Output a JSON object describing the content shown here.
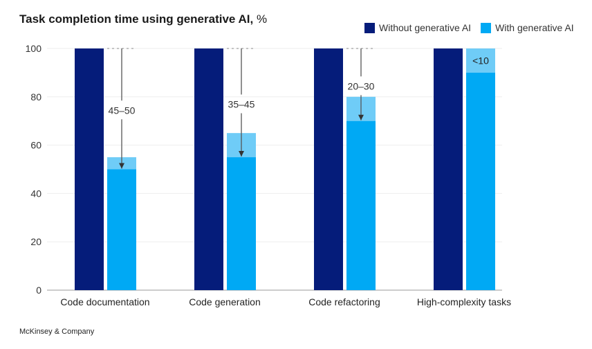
{
  "title": "Task completion time using generative AI,",
  "title_unit": "%",
  "legend": [
    {
      "label": "Without generative AI",
      "color": "#051c7a"
    },
    {
      "label": "With generative AI",
      "color": "#00a9f4"
    }
  ],
  "range_color": "#6fccf7",
  "source": "McKinsey & Company",
  "chart_data": {
    "type": "bar",
    "categories": [
      "Code documentation",
      "Code generation",
      "Code refactoring",
      "High-complexity tasks"
    ],
    "series": [
      {
        "name": "Without generative AI",
        "values": [
          100,
          100,
          100,
          100
        ]
      },
      {
        "name": "With generative AI",
        "values": [
          50,
          55,
          70,
          90
        ],
        "range_top": [
          55,
          65,
          80,
          100
        ]
      }
    ],
    "annotations": [
      "45–50",
      "35–45",
      "20–30",
      "<10"
    ],
    "ylim": [
      0,
      100
    ],
    "yticks": [
      0,
      20,
      40,
      60,
      80,
      100
    ],
    "grid": true,
    "legend_position": "top-right"
  }
}
